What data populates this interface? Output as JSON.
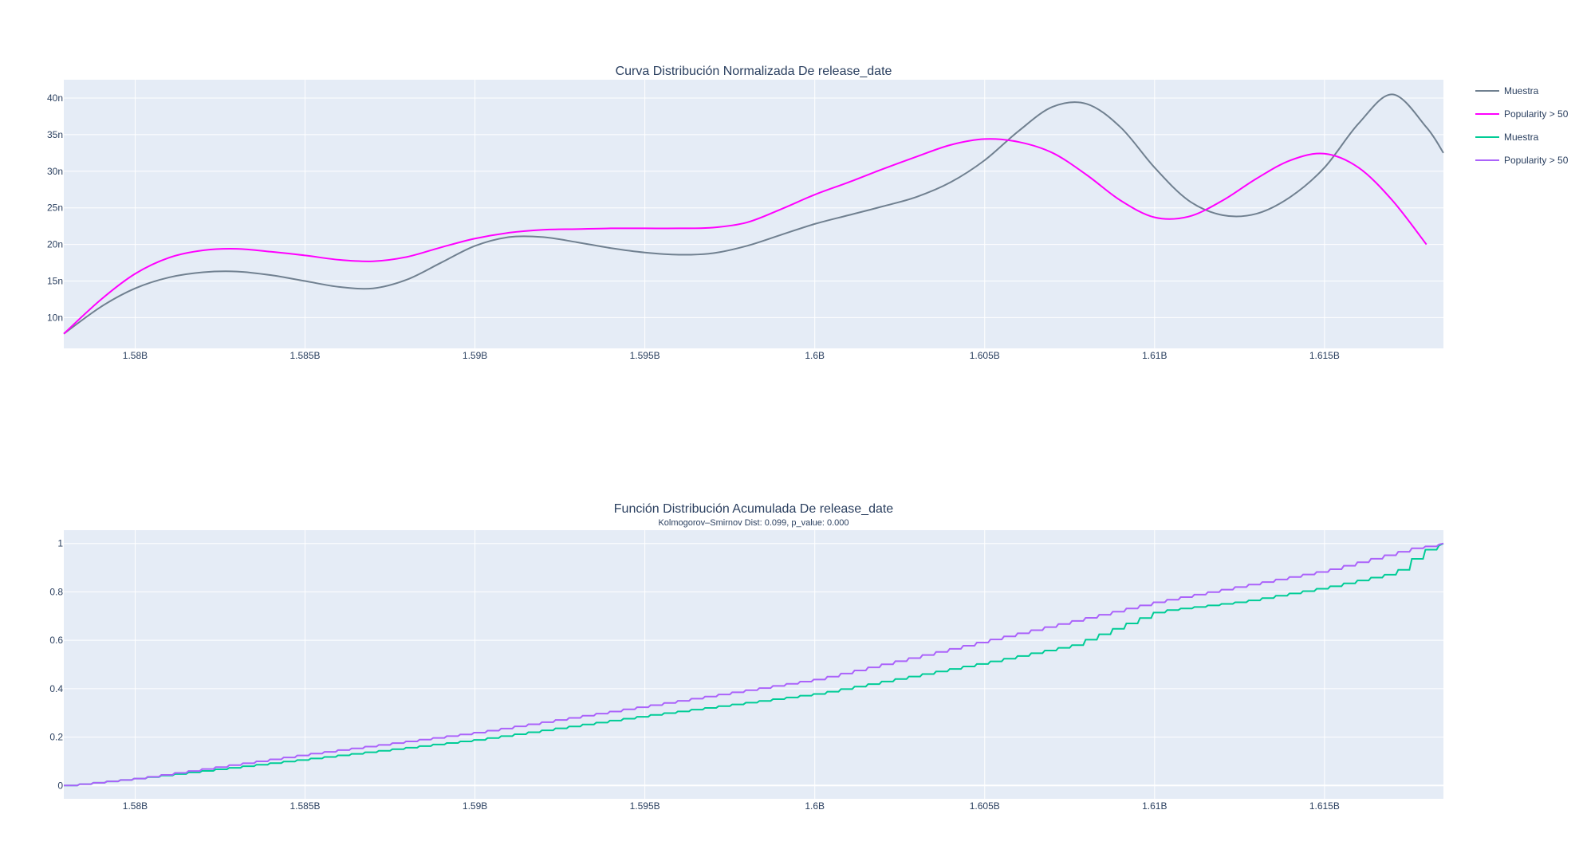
{
  "chart_data": [
    {
      "type": "line",
      "title": "Curva Distribución Normalizada De release_date",
      "xlabel": "",
      "ylabel": "",
      "xlim": [
        1577900000,
        1618500000
      ],
      "ylim": [
        5.8e-09,
        4.25e-08
      ],
      "x_ticks": [
        {
          "value": 1580000000,
          "label": "1.58B"
        },
        {
          "value": 1585000000,
          "label": "1.585B"
        },
        {
          "value": 1590000000,
          "label": "1.59B"
        },
        {
          "value": 1595000000,
          "label": "1.595B"
        },
        {
          "value": 1600000000,
          "label": "1.6B"
        },
        {
          "value": 1605000000,
          "label": "1.605B"
        },
        {
          "value": 1610000000,
          "label": "1.61B"
        },
        {
          "value": 1615000000,
          "label": "1.615B"
        }
      ],
      "y_ticks": [
        {
          "value": 1e-08,
          "label": "10n"
        },
        {
          "value": 1.5e-08,
          "label": "15n"
        },
        {
          "value": 2e-08,
          "label": "20n"
        },
        {
          "value": 2.5e-08,
          "label": "25n"
        },
        {
          "value": 3e-08,
          "label": "30n"
        },
        {
          "value": 3.5e-08,
          "label": "35n"
        },
        {
          "value": 4e-08,
          "label": "40n"
        }
      ],
      "grid": true,
      "legend_placement": "top-right",
      "series": [
        {
          "name": "Muestra",
          "color": "#708090",
          "x": [
            1577900000,
            1579000000,
            1580000000,
            1581000000,
            1582000000,
            1583000000,
            1584000000,
            1585000000,
            1586000000,
            1587000000,
            1588000000,
            1589000000,
            1590000000,
            1591000000,
            1592000000,
            1593000000,
            1594000000,
            1595000000,
            1596000000,
            1597000000,
            1598000000,
            1599000000,
            1600000000,
            1601000000,
            1602000000,
            1603000000,
            1604000000,
            1605000000,
            1606000000,
            1607000000,
            1608000000,
            1609000000,
            1610000000,
            1611000000,
            1612000000,
            1613000000,
            1614000000,
            1615000000,
            1616000000,
            1617000000,
            1618000000,
            1618500000
          ],
          "values": [
            7.8e-09,
            1.15e-08,
            1.4e-08,
            1.55e-08,
            1.62e-08,
            1.63e-08,
            1.58e-08,
            1.5e-08,
            1.42e-08,
            1.4e-08,
            1.52e-08,
            1.75e-08,
            1.98e-08,
            2.1e-08,
            2.1e-08,
            2.03e-08,
            1.95e-08,
            1.89e-08,
            1.86e-08,
            1.88e-08,
            1.98e-08,
            2.13e-08,
            2.28e-08,
            2.4e-08,
            2.52e-08,
            2.65e-08,
            2.85e-08,
            3.15e-08,
            3.55e-08,
            3.88e-08,
            3.92e-08,
            3.6e-08,
            3.05e-08,
            2.6e-08,
            2.4e-08,
            2.42e-08,
            2.65e-08,
            3.05e-08,
            3.65e-08,
            4.05e-08,
            3.6e-08,
            3.25e-08
          ]
        },
        {
          "name": "Popularity > 50",
          "color": "#ff00ff",
          "x": [
            1577900000,
            1579000000,
            1580000000,
            1581000000,
            1582000000,
            1583000000,
            1584000000,
            1585000000,
            1586000000,
            1587000000,
            1588000000,
            1589000000,
            1590000000,
            1591000000,
            1592000000,
            1593000000,
            1594000000,
            1595000000,
            1596000000,
            1597000000,
            1598000000,
            1599000000,
            1600000000,
            1601000000,
            1602000000,
            1603000000,
            1604000000,
            1605000000,
            1606000000,
            1607000000,
            1608000000,
            1609000000,
            1610000000,
            1611000000,
            1612000000,
            1613000000,
            1614000000,
            1615000000,
            1616000000,
            1617000000,
            1618000000
          ],
          "values": [
            7.8e-09,
            1.25e-08,
            1.6e-08,
            1.82e-08,
            1.92e-08,
            1.94e-08,
            1.9e-08,
            1.85e-08,
            1.79e-08,
            1.77e-08,
            1.83e-08,
            1.96e-08,
            2.08e-08,
            2.16e-08,
            2.2e-08,
            2.21e-08,
            2.22e-08,
            2.22e-08,
            2.22e-08,
            2.23e-08,
            2.3e-08,
            2.48e-08,
            2.68e-08,
            2.85e-08,
            3.03e-08,
            3.2e-08,
            3.36e-08,
            3.44e-08,
            3.4e-08,
            3.25e-08,
            2.95e-08,
            2.6e-08,
            2.37e-08,
            2.38e-08,
            2.6e-08,
            2.9e-08,
            3.15e-08,
            3.24e-08,
            3.05e-08,
            2.6e-08,
            2e-08
          ]
        }
      ]
    },
    {
      "type": "line",
      "title": "Función Distribución Acumulada De release_date",
      "subtitle": "Kolmogorov–Smirnov Dist: 0.099, p_value:  0.000",
      "xlabel": "",
      "ylabel": "",
      "xlim": [
        1577900000,
        1618500000
      ],
      "ylim": [
        -0.055,
        1.055
      ],
      "x_ticks": [
        {
          "value": 1580000000,
          "label": "1.58B"
        },
        {
          "value": 1585000000,
          "label": "1.585B"
        },
        {
          "value": 1590000000,
          "label": "1.59B"
        },
        {
          "value": 1595000000,
          "label": "1.595B"
        },
        {
          "value": 1600000000,
          "label": "1.6B"
        },
        {
          "value": 1605000000,
          "label": "1.605B"
        },
        {
          "value": 1610000000,
          "label": "1.61B"
        },
        {
          "value": 1615000000,
          "label": "1.615B"
        }
      ],
      "y_ticks": [
        {
          "value": 0,
          "label": "0"
        },
        {
          "value": 0.2,
          "label": "0.2"
        },
        {
          "value": 0.4,
          "label": "0.4"
        },
        {
          "value": 0.6,
          "label": "0.6"
        },
        {
          "value": 0.8,
          "label": "0.8"
        },
        {
          "value": 1,
          "label": "1"
        }
      ],
      "grid": true,
      "legend_placement": "top-right",
      "series": [
        {
          "name": "Muestra",
          "color": "#00cc96",
          "x": [
            1577900000,
            1580000000,
            1585000000,
            1590000000,
            1595000000,
            1600000000,
            1605000000,
            1607500000,
            1610000000,
            1612500000,
            1615000000,
            1617000000,
            1617800000,
            1618500000
          ],
          "values": [
            0.0,
            0.03,
            0.11,
            0.19,
            0.29,
            0.38,
            0.51,
            0.58,
            0.72,
            0.76,
            0.82,
            0.88,
            0.97,
            1.0
          ]
        },
        {
          "name": "Popularity > 50",
          "color": "#ab63fa",
          "x": [
            1577900000,
            1580000000,
            1585000000,
            1590000000,
            1595000000,
            1600000000,
            1605000000,
            1610000000,
            1615000000,
            1617500000,
            1618500000
          ],
          "values": [
            0.0,
            0.03,
            0.13,
            0.22,
            0.33,
            0.44,
            0.6,
            0.76,
            0.89,
            0.98,
            1.0
          ]
        }
      ]
    }
  ]
}
